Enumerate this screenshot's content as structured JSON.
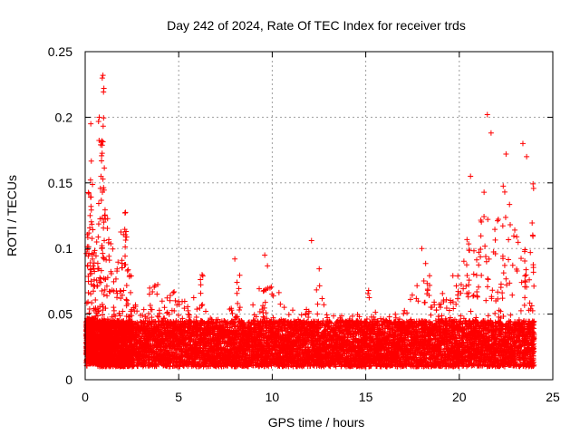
{
  "chart_data": {
    "type": "scatter",
    "title": "Day 242 of 2024, Rate Of TEC Index for receiver trds",
    "xlabel": "GPS time / hours",
    "ylabel": "ROTI / TECUs",
    "xlim": [
      0,
      25
    ],
    "ylim": [
      0,
      0.25
    ],
    "x_ticks": [
      0,
      5,
      10,
      15,
      20,
      25
    ],
    "y_ticks": [
      0,
      0.05,
      0.1,
      0.15,
      0.2,
      0.25
    ],
    "x_tick_labels": [
      "0",
      "5",
      "10",
      "15",
      "20",
      "25"
    ],
    "y_tick_labels": [
      "0",
      "0.05",
      "0.1",
      "0.15",
      "0.2",
      "0.25"
    ],
    "grid": true,
    "marker": "plus",
    "color": "#ff0000",
    "series": [
      {
        "x": [
          0.05,
          0.1,
          0.15,
          0.2,
          0.25,
          0.3,
          0.35,
          0.4,
          0.45,
          0.5,
          0.6,
          0.7,
          0.8,
          0.9,
          0.95,
          1.0,
          1.05,
          1.1,
          1.2,
          1.3,
          1.4,
          1.5,
          1.6,
          1.7,
          1.8,
          1.9,
          2.0,
          2.1,
          2.2,
          2.3,
          2.4,
          2.5,
          2.7,
          2.9,
          3.1,
          3.3,
          3.5,
          3.7,
          3.9,
          4.1,
          4.3,
          4.5,
          4.7,
          4.9,
          5.1,
          5.3,
          5.5,
          5.7,
          5.9,
          6.1,
          6.3,
          6.5,
          6.7,
          6.9,
          7.1,
          7.3,
          7.5,
          7.7,
          7.9,
          8.1,
          8.3,
          8.5,
          8.7,
          8.9,
          9.1,
          9.3,
          9.5,
          9.7,
          9.9,
          10.1,
          10.3,
          10.5,
          10.7,
          10.9,
          11.1,
          11.3,
          11.5,
          11.7,
          11.9,
          12.1,
          12.3,
          12.5,
          12.7,
          12.9,
          13.1,
          13.3,
          13.5,
          13.7,
          13.9,
          14.1,
          14.3,
          14.5,
          14.7,
          14.9,
          15.1,
          15.3,
          15.5,
          15.7,
          15.9,
          16.1,
          16.3,
          16.5,
          16.7,
          16.9,
          17.1,
          17.3,
          17.5,
          17.7,
          17.9,
          18.1,
          18.3,
          18.5,
          18.7,
          18.9,
          19.1,
          19.3,
          19.5,
          19.7,
          19.9,
          20.1,
          20.3,
          20.5,
          20.7,
          20.9,
          21.1,
          21.3,
          21.5,
          21.7,
          21.9,
          22.1,
          22.3,
          22.5,
          22.7,
          22.9,
          23.1,
          23.3,
          23.5,
          23.7,
          23.9
        ],
        "y_min": [
          0.01,
          0.012,
          0.012,
          0.012,
          0.012,
          0.012,
          0.012,
          0.012,
          0.012,
          0.012,
          0.01,
          0.01,
          0.01,
          0.01,
          0.01,
          0.01,
          0.01,
          0.01,
          0.01,
          0.01,
          0.01,
          0.01,
          0.01,
          0.01,
          0.01,
          0.01,
          0.01,
          0.01,
          0.01,
          0.01,
          0.01,
          0.01,
          0.01,
          0.01,
          0.01,
          0.01,
          0.01,
          0.01,
          0.01,
          0.01,
          0.01,
          0.01,
          0.01,
          0.01,
          0.01,
          0.01,
          0.01,
          0.01,
          0.01,
          0.01,
          0.01,
          0.01,
          0.01,
          0.01,
          0.01,
          0.01,
          0.01,
          0.01,
          0.01,
          0.01,
          0.01,
          0.01,
          0.01,
          0.01,
          0.01,
          0.01,
          0.01,
          0.01,
          0.01,
          0.01,
          0.01,
          0.01,
          0.01,
          0.01,
          0.01,
          0.01,
          0.01,
          0.01,
          0.01,
          0.01,
          0.01,
          0.01,
          0.01,
          0.01,
          0.01,
          0.01,
          0.01,
          0.01,
          0.01,
          0.01,
          0.01,
          0.01,
          0.01,
          0.01,
          0.01,
          0.01,
          0.01,
          0.01,
          0.01,
          0.01,
          0.01,
          0.01,
          0.01,
          0.01,
          0.01,
          0.01,
          0.01,
          0.01,
          0.01,
          0.01,
          0.01,
          0.01,
          0.01,
          0.01,
          0.01,
          0.01,
          0.01,
          0.01,
          0.01,
          0.01,
          0.01,
          0.01,
          0.01,
          0.01,
          0.01,
          0.01,
          0.01,
          0.01,
          0.01,
          0.01,
          0.01,
          0.01,
          0.01,
          0.01,
          0.01,
          0.01,
          0.01,
          0.01,
          0.01
        ],
        "y_max": [
          0.16,
          0.16,
          0.15,
          0.14,
          0.18,
          0.19,
          0.15,
          0.12,
          0.11,
          0.1,
          0.12,
          0.2,
          0.19,
          0.23,
          0.23,
          0.17,
          0.15,
          0.13,
          0.12,
          0.11,
          0.1,
          0.09,
          0.1,
          0.1,
          0.1,
          0.12,
          0.13,
          0.13,
          0.12,
          0.08,
          0.08,
          0.07,
          0.06,
          0.05,
          0.06,
          0.07,
          0.075,
          0.075,
          0.06,
          0.06,
          0.07,
          0.065,
          0.07,
          0.06,
          0.065,
          0.07,
          0.06,
          0.07,
          0.065,
          0.08,
          0.06,
          0.05,
          0.05,
          0.05,
          0.05,
          0.05,
          0.05,
          0.06,
          0.05,
          0.09,
          0.05,
          0.04,
          0.045,
          0.06,
          0.05,
          0.07,
          0.07,
          0.09,
          0.085,
          0.07,
          0.07,
          0.06,
          0.05,
          0.055,
          0.055,
          0.05,
          0.05,
          0.055,
          0.055,
          0.05,
          0.07,
          0.09,
          0.06,
          0.05,
          0.05,
          0.045,
          0.05,
          0.05,
          0.045,
          0.05,
          0.045,
          0.05,
          0.05,
          0.06,
          0.075,
          0.055,
          0.055,
          0.06,
          0.05,
          0.05,
          0.05,
          0.05,
          0.055,
          0.06,
          0.06,
          0.07,
          0.06,
          0.08,
          0.06,
          0.1,
          0.09,
          0.06,
          0.06,
          0.06,
          0.07,
          0.07,
          0.08,
          0.08,
          0.09,
          0.1,
          0.12,
          0.13,
          0.11,
          0.1,
          0.14,
          0.15,
          0.13,
          0.12,
          0.13,
          0.13,
          0.15,
          0.14,
          0.13,
          0.12,
          0.11,
          0.1,
          0.1,
          0.12,
          0.15
        ],
        "outliers": [
          [
            0.95,
            0.232
          ],
          [
            1.0,
            0.222
          ],
          [
            0.75,
            0.2
          ],
          [
            0.3,
            0.195
          ],
          [
            20.6,
            0.155
          ],
          [
            21.5,
            0.202
          ],
          [
            21.7,
            0.188
          ],
          [
            23.4,
            0.18
          ],
          [
            12.1,
            0.106
          ],
          [
            6.25,
            0.08
          ],
          [
            8.0,
            0.092
          ],
          [
            9.6,
            0.095
          ],
          [
            18.0,
            0.1
          ],
          [
            22.5,
            0.172
          ],
          [
            23.6,
            0.17
          ]
        ]
      }
    ]
  }
}
